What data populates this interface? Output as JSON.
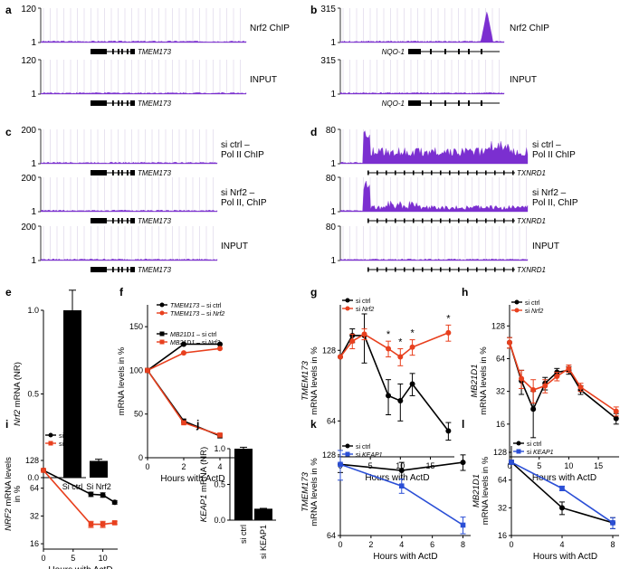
{
  "colors": {
    "black": "#000000",
    "red": "#e8401e",
    "blue": "#2b4fd6",
    "purple": "#7b2fd0",
    "track_line": "#c9c9c9",
    "grid": "#d9d0e6"
  },
  "tracks": {
    "panels": [
      {
        "letter": "a",
        "tracks": [
          {
            "scale": {
              "max": "120",
              "min": "1"
            },
            "label_lines": [
              "Nrf2 ChIP"
            ],
            "gene": {
              "name": "TMEM173",
              "style": "compact"
            },
            "signal": "low"
          },
          {
            "scale": {
              "max": "120",
              "min": "1"
            },
            "label_lines": [
              "INPUT"
            ],
            "gene": {
              "name": "TMEM173",
              "style": "compact"
            },
            "signal": "low"
          }
        ]
      },
      {
        "letter": "b",
        "tracks": [
          {
            "scale": {
              "max": "315",
              "min": "1"
            },
            "label_lines": [
              "Nrf2 ChIP"
            ],
            "gene": {
              "name": "NQO-1",
              "style": "long"
            },
            "signal": "peak"
          },
          {
            "scale": {
              "max": "315",
              "min": "1"
            },
            "label_lines": [
              "INPUT"
            ],
            "gene": {
              "name": "NQO-1",
              "style": "long"
            },
            "signal": "low"
          }
        ]
      },
      {
        "letter": "c",
        "tracks": [
          {
            "scale": {
              "max": "200",
              "min": "1"
            },
            "label_lines": [
              "si ctrl –",
              "Pol II ChIP"
            ],
            "gene": {
              "name": "TMEM173",
              "style": "compact"
            },
            "signal": "low"
          },
          {
            "scale": {
              "max": "200",
              "min": "1"
            },
            "label_lines": [
              "si Nrf2 –",
              "Pol II, ChIP"
            ],
            "gene": {
              "name": "TMEM173",
              "style": "compact"
            },
            "signal": "low"
          },
          {
            "scale": {
              "max": "200",
              "min": "1"
            },
            "label_lines": [
              "INPUT"
            ],
            "gene": {
              "name": "TMEM173",
              "style": "compact"
            },
            "signal": "low"
          }
        ]
      },
      {
        "letter": "d",
        "tracks": [
          {
            "scale": {
              "max": "80",
              "min": "1"
            },
            "label_lines": [
              "si ctrl –",
              "Pol II ChIP"
            ],
            "gene": {
              "name": "TXNRD1",
              "style": "txn"
            },
            "signal": "high"
          },
          {
            "scale": {
              "max": "80",
              "min": "1"
            },
            "label_lines": [
              "si Nrf2 –",
              "Pol II, ChIP"
            ],
            "gene": {
              "name": "TXNRD1",
              "style": "txn"
            },
            "signal": "mid"
          },
          {
            "scale": {
              "max": "80",
              "min": "1"
            },
            "label_lines": [
              "INPUT"
            ],
            "gene": {
              "name": "TXNRD1",
              "style": "txn"
            },
            "signal": "low"
          }
        ]
      }
    ]
  },
  "chart_data": [
    {
      "id": "e",
      "type": "bar",
      "ylabel_parts": [
        {
          "t": "Nrf2",
          "i": true
        },
        {
          "t": " mRNA (NR)",
          "i": false
        }
      ],
      "categories": [
        "Si ctrl",
        "Si Nrf2"
      ],
      "values": [
        1.0,
        0.1
      ],
      "errors": [
        0.12,
        0.01
      ],
      "ylim": [
        0,
        1.0
      ],
      "yticks": [
        "0.0",
        "0.5",
        "1.0"
      ],
      "xlabel": ""
    },
    {
      "id": "f",
      "type": "line",
      "ylabel_parts": [
        {
          "t": "mRNA levels in %",
          "i": false
        }
      ],
      "xlabel": "Hours with ActD",
      "xticks": [
        "0",
        "2",
        "4"
      ],
      "yticks": [
        "0",
        "50",
        "100",
        "150"
      ],
      "xlim": [
        0,
        5
      ],
      "ylim": [
        0,
        175
      ],
      "series": [
        {
          "legend_parts": [
            {
              "t": "TMEM173",
              "i": true
            },
            {
              "t": " – si ctrl",
              "i": false
            }
          ],
          "color": "black",
          "marker": "circle",
          "x": [
            0,
            2,
            4
          ],
          "y": [
            100,
            130,
            130
          ]
        },
        {
          "legend_parts": [
            {
              "t": "TMEM173",
              "i": true
            },
            {
              "t": " – si ",
              "i": false
            },
            {
              "t": "Nrf2",
              "i": true
            }
          ],
          "color": "red",
          "marker": "circle",
          "x": [
            0,
            2,
            4
          ],
          "y": [
            100,
            120,
            125
          ]
        },
        {
          "legend_parts": [
            {
              "t": "MB21D1",
              "i": true
            },
            {
              "t": " – si ctrl",
              "i": false
            }
          ],
          "color": "black",
          "marker": "square",
          "x": [
            0,
            2,
            4
          ],
          "y": [
            100,
            42,
            25
          ]
        },
        {
          "legend_parts": [
            {
              "t": "MB21D1",
              "i": true
            },
            {
              "t": " – si ",
              "i": false
            },
            {
              "t": "Nrf2",
              "i": true
            }
          ],
          "color": "red",
          "marker": "square",
          "x": [
            0,
            2,
            4
          ],
          "y": [
            100,
            40,
            26
          ]
        }
      ]
    },
    {
      "id": "g",
      "type": "line",
      "scale": "log2",
      "ylabel_parts": [
        {
          "t": "TMEM173",
          "i": true
        },
        {
          "t": "|mRNA levels in %",
          "i": false
        }
      ],
      "xlabel": "Hours with ActD",
      "xticks": [
        "0",
        "5",
        "10",
        "15"
      ],
      "yticks": [
        "64",
        "128"
      ],
      "xlim": [
        0,
        19
      ],
      "ylim": [
        45,
        200
      ],
      "series": [
        {
          "legend_parts": [
            {
              "t": "si ctrl",
              "i": false
            }
          ],
          "color": "black",
          "marker": "circle",
          "x": [
            0,
            2,
            4,
            8,
            10,
            12,
            18
          ],
          "y": [
            120,
            148,
            148,
            82,
            78,
            92,
            58
          ],
          "err": [
            0,
            10,
            35,
            14,
            14,
            10,
            5
          ]
        },
        {
          "legend_parts": [
            {
              "t": "si ",
              "i": false
            },
            {
              "t": "Nrf2",
              "i": true
            }
          ],
          "color": "red",
          "marker": "circle",
          "x": [
            0,
            2,
            4,
            8,
            10,
            12,
            18
          ],
          "y": [
            120,
            140,
            150,
            130,
            120,
            132,
            152
          ],
          "err": [
            0,
            10,
            8,
            10,
            10,
            10,
            12
          ]
        }
      ],
      "annotations": [
        {
          "text": "*",
          "x": 8
        },
        {
          "text": "*",
          "x": 10
        },
        {
          "text": "*",
          "x": 12
        },
        {
          "text": "*",
          "x": 18
        }
      ]
    },
    {
      "id": "h",
      "type": "line",
      "scale": "log2",
      "ylabel_parts": [
        {
          "t": "MB21D1",
          "i": true
        },
        {
          "t": "|mRNA levels in %",
          "i": false
        }
      ],
      "xlabel": "Hours with ActD",
      "xticks": [
        "0",
        "5",
        "10",
        "15"
      ],
      "yticks": [
        "16",
        "32",
        "64",
        "128"
      ],
      "xlim": [
        0,
        18.5
      ],
      "ylim": [
        8,
        200
      ],
      "series": [
        {
          "legend_parts": [
            {
              "t": "si ctrl",
              "i": false
            }
          ],
          "color": "black",
          "marker": "circle",
          "x": [
            0,
            2,
            4,
            6,
            8,
            10,
            12,
            18
          ],
          "y": [
            90,
            40,
            22,
            38,
            48,
            50,
            33,
            18
          ],
          "err": [
            10,
            10,
            10,
            5,
            4,
            4,
            3,
            2
          ]
        },
        {
          "legend_parts": [
            {
              "t": "si ",
              "i": false
            },
            {
              "t": "Nrf2",
              "i": true
            }
          ],
          "color": "red",
          "marker": "circle",
          "x": [
            0,
            2,
            4,
            6,
            8,
            10,
            12,
            18
          ],
          "y": [
            90,
            42,
            33,
            36,
            44,
            52,
            35,
            21
          ],
          "err": [
            10,
            8,
            8,
            5,
            4,
            4,
            3,
            2
          ]
        }
      ]
    },
    {
      "id": "i",
      "type": "line",
      "scale": "log2",
      "ylabel_parts": [
        {
          "t": "NRF2",
          "i": true
        },
        {
          "t": " mRNA levels|in %",
          "i": false
        }
      ],
      "xlabel": "Hours with ActD",
      "xticks": [
        "0",
        "5",
        "10"
      ],
      "yticks": [
        "16",
        "32",
        "64",
        "128"
      ],
      "xlim": [
        0,
        12.5
      ],
      "ylim": [
        14,
        220
      ],
      "series": [
        {
          "legend_parts": [
            {
              "t": "si ctrl",
              "i": false
            }
          ],
          "color": "black",
          "marker": "circle",
          "x": [
            0,
            8,
            10,
            12
          ],
          "y": [
            100,
            55,
            54,
            45
          ],
          "err": [
            0,
            3,
            3,
            2
          ]
        },
        {
          "legend_parts": [
            {
              "t": "si ",
              "i": false
            },
            {
              "t": "Nrf2",
              "i": true
            }
          ],
          "color": "red",
          "marker": "square",
          "x": [
            0,
            8,
            10,
            12
          ],
          "y": [
            100,
            26,
            26,
            27
          ],
          "err": [
            0,
            2,
            2,
            1
          ]
        }
      ]
    },
    {
      "id": "j",
      "type": "bar",
      "ylabel_parts": [
        {
          "t": "KEAP1",
          "i": true
        },
        {
          "t": " mRNA (NR)",
          "i": false
        }
      ],
      "categories": [
        "si ctrl",
        "si KEAP1"
      ],
      "values": [
        1.0,
        0.16
      ],
      "errors": [
        0.02,
        0.005
      ],
      "ylim": [
        0,
        1.0
      ],
      "yticks": [
        "0.0",
        "0.5",
        "1.0"
      ],
      "xlabel": "",
      "rotate_labels": true
    },
    {
      "id": "k",
      "type": "line",
      "scale": "log2",
      "ylabel_parts": [
        {
          "t": "TMEM173",
          "i": true
        },
        {
          "t": "|mRNA levels in %",
          "i": false
        }
      ],
      "xlabel": "Hours with ActD",
      "xticks": [
        "0",
        "2",
        "4",
        "6",
        "8"
      ],
      "yticks": [
        "64",
        "128"
      ],
      "xlim": [
        0,
        8.5
      ],
      "ylim": [
        64,
        135
      ],
      "series": [
        {
          "legend_parts": [
            {
              "t": "si ctrl",
              "i": false
            }
          ],
          "color": "black",
          "marker": "circle",
          "x": [
            0,
            4,
            8
          ],
          "y": [
            118,
            112,
            120
          ],
          "err": [
            8,
            8,
            8
          ]
        },
        {
          "legend_parts": [
            {
              "t": "si ",
              "i": false
            },
            {
              "t": "KEAP1",
              "i": true
            }
          ],
          "color": "blue",
          "marker": "square",
          "x": [
            0,
            4,
            8
          ],
          "y": [
            118,
            98,
            70
          ],
          "err": [
            15,
            6,
            5
          ]
        }
      ]
    },
    {
      "id": "l",
      "type": "line",
      "scale": "log2",
      "ylabel_parts": [
        {
          "t": "MB21D1",
          "i": true
        },
        {
          "t": "|mRNA levels in %",
          "i": false
        }
      ],
      "xlabel": "Hours with ActD",
      "xticks": [
        "0",
        "4",
        "8"
      ],
      "yticks": [
        "16",
        "32",
        "64",
        "128"
      ],
      "xlim": [
        0,
        8.5
      ],
      "ylim": [
        16,
        150
      ],
      "series": [
        {
          "legend_parts": [
            {
              "t": "si ctrl",
              "i": false
            }
          ],
          "color": "black",
          "marker": "circle",
          "x": [
            0,
            4,
            8
          ],
          "y": [
            100,
            32,
            22
          ],
          "err": [
            5,
            5,
            3
          ]
        },
        {
          "legend_parts": [
            {
              "t": "si ",
              "i": false
            },
            {
              "t": "KEAP1",
              "i": true
            }
          ],
          "color": "blue",
          "marker": "square",
          "x": [
            0,
            4,
            8
          ],
          "y": [
            100,
            52,
            22
          ],
          "err": [
            5,
            3,
            3
          ]
        }
      ]
    }
  ]
}
